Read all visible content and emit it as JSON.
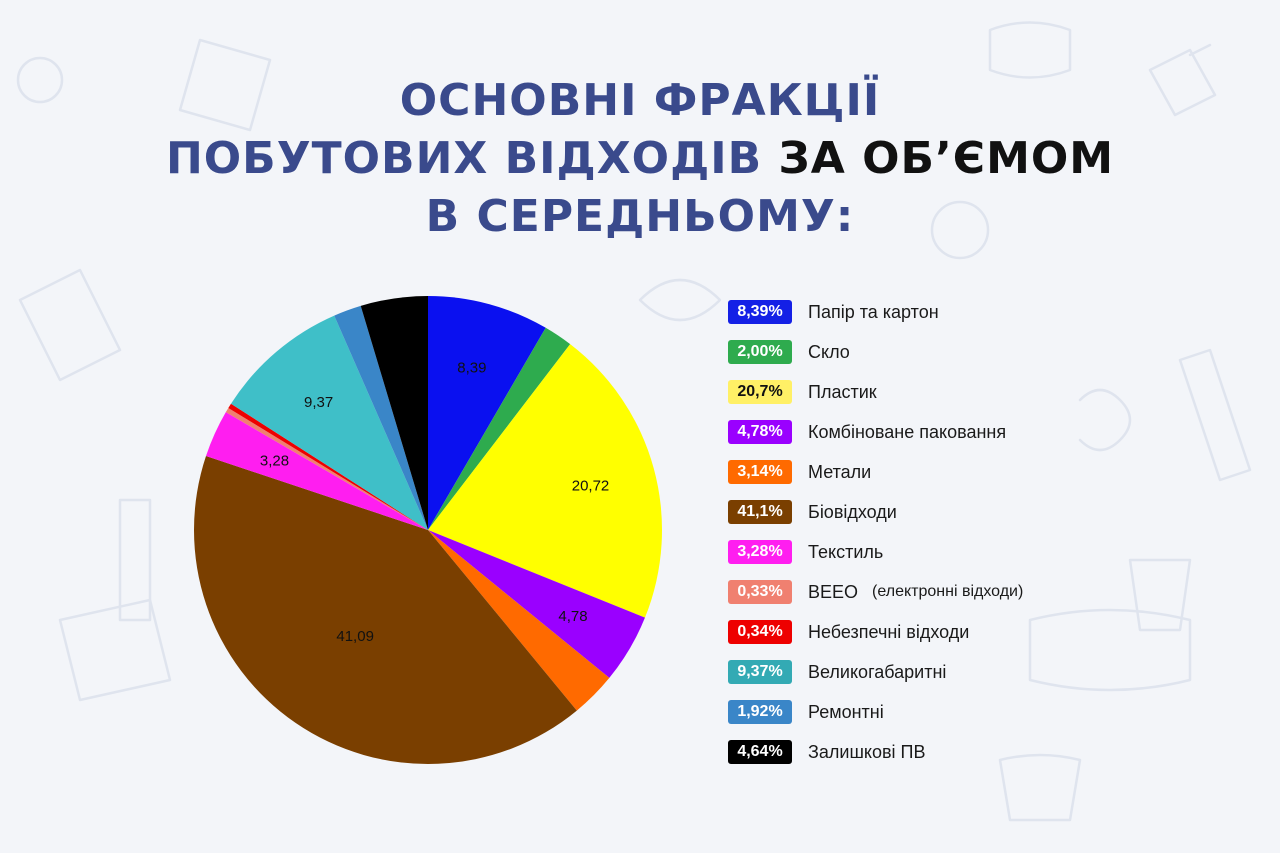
{
  "title": {
    "line1": "ОСНОВНІ ФРАКЦІЇ",
    "line2_a": "ПОБУТОВИХ ВІДХОДІВ",
    "line2_b": "ЗА ОБ’ЄМОМ",
    "line3": "В СЕРЕДНЬОМУ:"
  },
  "chart_data": {
    "type": "pie",
    "title": "",
    "start": "12 o'clock",
    "direction": "clockwise",
    "categories": [
      "Папір та картон",
      "Скло",
      "Пластик",
      "Комбіноване паковання",
      "Метали",
      "Біовідходи",
      "Текстиль",
      "ВЕЕО",
      "Небезпечні відходи",
      "Великогабаритні",
      "Ремонтні",
      "Залишкові ПВ"
    ],
    "values": [
      8.39,
      2.0,
      20.72,
      4.78,
      3.14,
      41.09,
      3.28,
      0.33,
      0.34,
      9.37,
      1.92,
      4.64
    ],
    "colors": [
      "#0a10f0",
      "#2eab4e",
      "#ffff00",
      "#9a00ff",
      "#ff6a00",
      "#7a3f00",
      "#ff1ef0",
      "#f08070",
      "#ee0000",
      "#3fbfc8",
      "#3a86c8",
      "#000000"
    ],
    "slice_labels": [
      "8,39",
      "",
      "20,72",
      "4,78",
      "",
      "41,09",
      "3,28",
      "",
      "",
      "9,37",
      "",
      ""
    ],
    "legend_position": "right"
  },
  "legend": {
    "items": [
      {
        "badge": "8,39%",
        "label": "Папір та картон",
        "color": "#1420e6",
        "text_color": "#ffffff"
      },
      {
        "badge": "2,00%",
        "label": "Скло",
        "color": "#2eab4e",
        "text_color": "#ffffff"
      },
      {
        "badge": "20,7%",
        "label": "Пластик",
        "color": "#fff066",
        "text_color": "#111111"
      },
      {
        "badge": "4,78%",
        "label": "Комбіноване паковання",
        "color": "#9a00ff",
        "text_color": "#ffffff"
      },
      {
        "badge": "3,14%",
        "label": "Метали",
        "color": "#ff6a00",
        "text_color": "#ffffff"
      },
      {
        "badge": "41,1%",
        "label": "Біовідходи",
        "color": "#7a3f00",
        "text_color": "#ffffff"
      },
      {
        "badge": "3,28%",
        "label": "Текстиль",
        "color": "#ff1ef0",
        "text_color": "#ffffff"
      },
      {
        "badge": "0,33%",
        "label": "ВЕЕО",
        "note": "(електронні відходи)",
        "color": "#f08070",
        "text_color": "#ffffff"
      },
      {
        "badge": "0,34%",
        "label": "Небезпечні відходи",
        "color": "#ee0000",
        "text_color": "#ffffff"
      },
      {
        "badge": "9,37%",
        "label": "Великогабаритні",
        "color": "#33aab4",
        "text_color": "#ffffff"
      },
      {
        "badge": "1,92%",
        "label": "Ремонтні",
        "color": "#3a86c8",
        "text_color": "#ffffff"
      },
      {
        "badge": "4,64%",
        "label": "Залишкові ПВ",
        "color": "#000000",
        "text_color": "#ffffff"
      }
    ]
  }
}
